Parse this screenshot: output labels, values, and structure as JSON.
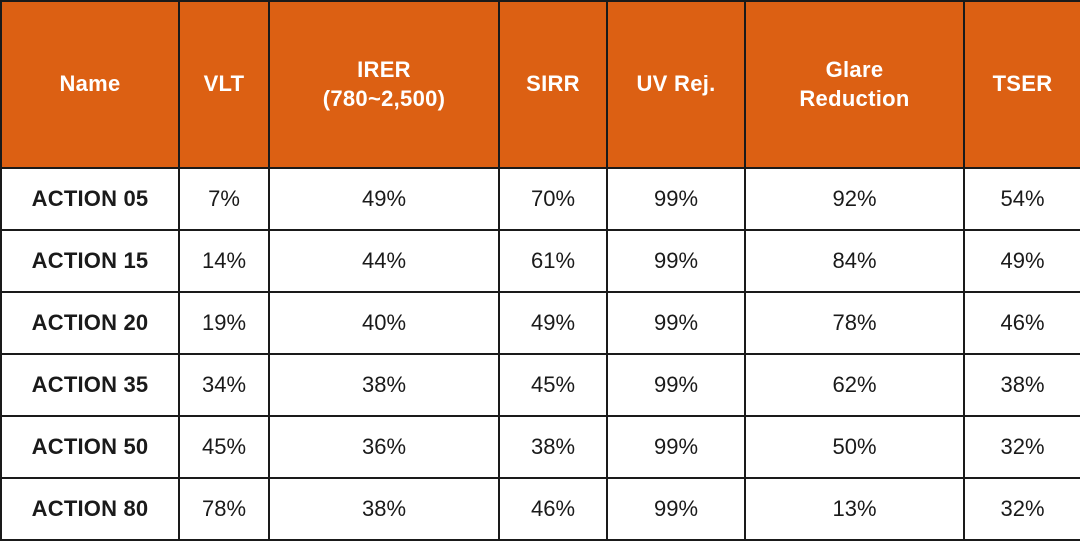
{
  "chart_data": {
    "type": "table",
    "columns": [
      "Name",
      "VLT",
      "IRER (780~2,500)",
      "SIRR",
      "UV Rej.",
      "Glare Reduction",
      "TSER"
    ],
    "header": {
      "name": "Name",
      "vlt": "VLT",
      "irer_line1": "IRER",
      "irer_line2": "(780~2,500)",
      "sirr": "SIRR",
      "uv": "UV Rej.",
      "glare_line1": "Glare",
      "glare_line2": "Reduction",
      "tser": "TSER"
    },
    "rows": [
      {
        "name": "ACTION 05",
        "vlt": "7%",
        "irer": "49%",
        "sirr": "70%",
        "uv": "99%",
        "glare": "92%",
        "tser": "54%"
      },
      {
        "name": "ACTION 15",
        "vlt": "14%",
        "irer": "44%",
        "sirr": "61%",
        "uv": "99%",
        "glare": "84%",
        "tser": "49%"
      },
      {
        "name": "ACTION 20",
        "vlt": "19%",
        "irer": "40%",
        "sirr": "49%",
        "uv": "99%",
        "glare": "78%",
        "tser": "46%"
      },
      {
        "name": "ACTION 35",
        "vlt": "34%",
        "irer": "38%",
        "sirr": "45%",
        "uv": "99%",
        "glare": "62%",
        "tser": "38%"
      },
      {
        "name": "ACTION 50",
        "vlt": "45%",
        "irer": "36%",
        "sirr": "38%",
        "uv": "99%",
        "glare": "50%",
        "tser": "32%"
      },
      {
        "name": "ACTION 80",
        "vlt": "78%",
        "irer": "38%",
        "sirr": "46%",
        "uv": "99%",
        "glare": "13%",
        "tser": "32%"
      }
    ]
  },
  "colors": {
    "header_bg": "#dc6013",
    "header_text": "#ffffff",
    "border": "#1a1a1a",
    "cell_text": "#1a1a1a",
    "cell_bg": "#ffffff"
  }
}
